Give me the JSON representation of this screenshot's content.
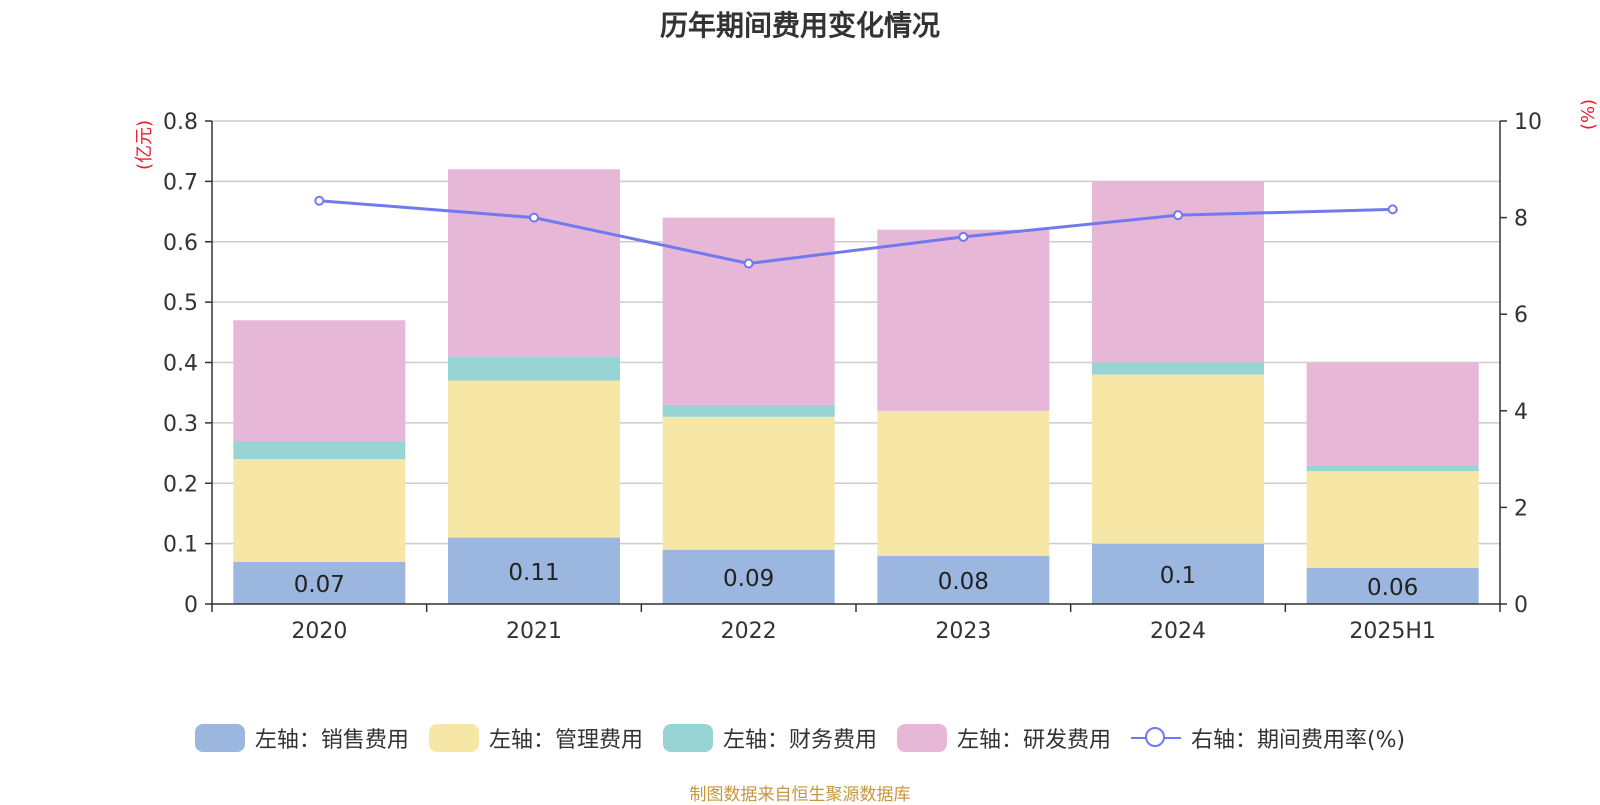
{
  "title": "历年期间费用变化情况",
  "left_unit": "(亿元)",
  "right_unit": "(%)",
  "source": "制图数据来自恒生聚源数据库",
  "colors": {
    "sales": "#9bb7e0",
    "admin": "#f7e7a7",
    "finance": "#98d4d4",
    "rnd": "#e7b7d8",
    "rate": "#7279ef",
    "grid": "#cccccc",
    "axis": "#333333",
    "unit": "#e8202a"
  },
  "legend": [
    {
      "label": "左轴：销售费用",
      "color": "#9bb7e0",
      "kind": "bar"
    },
    {
      "label": "左轴：管理费用",
      "color": "#f7e7a7",
      "kind": "bar"
    },
    {
      "label": "左轴：财务费用",
      "color": "#98d4d4",
      "kind": "bar"
    },
    {
      "label": "左轴：研发费用",
      "color": "#e7b7d8",
      "kind": "bar"
    },
    {
      "label": "右轴：期间费用率(%)",
      "color": "#7279ef",
      "kind": "line"
    }
  ],
  "chart_data": {
    "type": "bar",
    "stacked": true,
    "categories": [
      "2020",
      "2021",
      "2022",
      "2023",
      "2024",
      "2025H1"
    ],
    "series": [
      {
        "name": "左轴：销售费用",
        "axis": "left",
        "values": [
          0.07,
          0.11,
          0.09,
          0.08,
          0.1,
          0.06
        ],
        "labels": [
          "0.07",
          "0.11",
          "0.09",
          "0.08",
          "0.1",
          "0.06"
        ]
      },
      {
        "name": "左轴：管理费用",
        "axis": "left",
        "values": [
          0.17,
          0.26,
          0.22,
          0.24,
          0.28,
          0.16
        ]
      },
      {
        "name": "左轴：财务费用",
        "axis": "left",
        "values": [
          0.03,
          0.04,
          0.02,
          0.0,
          0.02,
          0.01
        ]
      },
      {
        "name": "左轴：研发费用",
        "axis": "left",
        "values": [
          0.2,
          0.31,
          0.31,
          0.3,
          0.3,
          0.17
        ]
      },
      {
        "name": "右轴：期间费用率(%)",
        "axis": "right",
        "type": "line",
        "values": [
          8.35,
          8.0,
          7.05,
          7.6,
          8.05,
          8.17
        ]
      }
    ],
    "left_axis": {
      "label": "(亿元)",
      "ylim": [
        0,
        0.8
      ],
      "ticks": [
        "0",
        "0.1",
        "0.2",
        "0.3",
        "0.4",
        "0.5",
        "0.6",
        "0.7",
        "0.8"
      ]
    },
    "right_axis": {
      "label": "(%)",
      "ylim": [
        0,
        10
      ],
      "ticks": [
        "0",
        "2",
        "4",
        "6",
        "8",
        "10"
      ]
    },
    "grid": true,
    "legend_position": "bottom"
  }
}
